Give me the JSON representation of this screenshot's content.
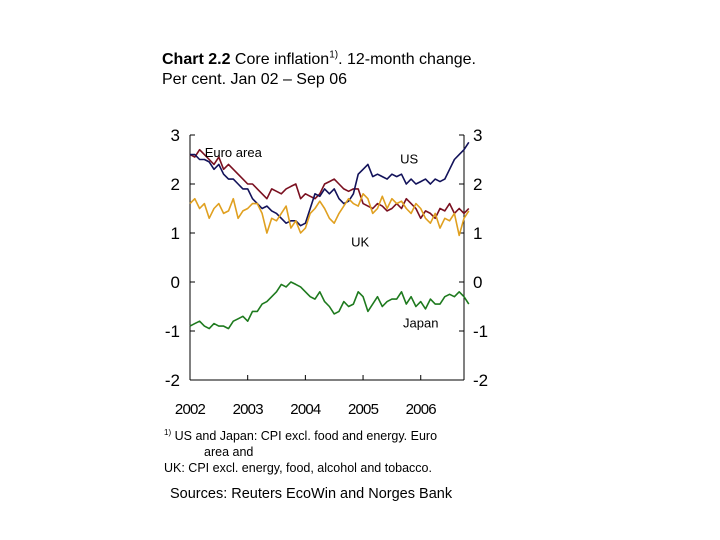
{
  "header": {
    "chart_no": "Chart 2.2",
    "title": "Core inflation",
    "title_sup": "1)",
    "title_rest": ". 12-month change.",
    "subtitle": "Per cent. Jan 02 – Sep 06"
  },
  "footnote": {
    "marker": "1)",
    "line1": "US and Japan: CPI excl. food and energy. Euro",
    "line2": "area and",
    "line3": "UK: CPI excl. energy, food, alcohol and tobacco."
  },
  "sources": "Sources: Reuters EcoWin and Norges Bank",
  "chart_data": {
    "type": "line",
    "title": "Core inflation. 12-month change",
    "ylabel": "Per cent",
    "ylim": [
      -2,
      3
    ],
    "yticks": [
      3,
      2,
      1,
      0,
      -1,
      -2
    ],
    "ytick_labels": [
      "3",
      "2",
      "1",
      "0",
      "-1",
      "-2"
    ],
    "xlim": [
      2002.0,
      2006.75
    ],
    "xticks": [
      2002,
      2003,
      2004,
      2005,
      2006
    ],
    "xtick_labels": [
      "2002",
      "2003",
      "2004",
      "2005",
      "2006"
    ],
    "period": "Jan 02 – Sep 06",
    "grid": false,
    "series": [
      {
        "name": "Euro area",
        "label": "Euro area",
        "color": "#7a1020",
        "values": [
          2.6,
          2.55,
          2.7,
          2.6,
          2.5,
          2.4,
          2.55,
          2.3,
          2.4,
          2.3,
          2.2,
          2.1,
          2.0,
          2.0,
          1.9,
          1.8,
          1.7,
          1.9,
          1.85,
          1.8,
          1.9,
          1.95,
          2.0,
          1.7,
          1.8,
          1.75,
          1.7,
          1.8,
          2.0,
          2.05,
          2.1,
          2.0,
          1.9,
          1.85,
          1.9,
          1.9,
          1.6,
          1.55,
          1.5,
          1.6,
          1.55,
          1.45,
          1.5,
          1.6,
          1.5,
          1.7,
          1.6,
          1.5,
          1.3,
          1.45,
          1.4,
          1.3,
          1.5,
          1.45,
          1.6,
          1.4,
          1.5,
          1.4,
          1.5
        ]
      },
      {
        "name": "US",
        "label": "US",
        "color": "#12125a",
        "values": [
          2.6,
          2.6,
          2.5,
          2.5,
          2.45,
          2.3,
          2.4,
          2.2,
          2.1,
          2.1,
          2.0,
          1.9,
          1.9,
          1.7,
          1.6,
          1.5,
          1.55,
          1.45,
          1.4,
          1.3,
          1.2,
          1.25,
          1.25,
          1.15,
          1.2,
          1.5,
          1.8,
          1.75,
          1.9,
          1.8,
          1.9,
          1.7,
          1.6,
          1.65,
          1.8,
          2.2,
          2.3,
          2.4,
          2.15,
          2.2,
          2.15,
          2.1,
          2.2,
          2.15,
          2.2,
          2.0,
          2.1,
          2.0,
          2.05,
          2.1,
          2.0,
          2.1,
          2.05,
          2.1,
          2.3,
          2.5,
          2.6,
          2.7,
          2.85
        ]
      },
      {
        "name": "UK",
        "label": "UK",
        "color": "#e0a020",
        "values": [
          1.6,
          1.7,
          1.5,
          1.6,
          1.3,
          1.5,
          1.6,
          1.4,
          1.45,
          1.7,
          1.3,
          1.45,
          1.5,
          1.6,
          1.6,
          1.4,
          1.0,
          1.3,
          1.25,
          1.4,
          1.55,
          1.1,
          1.25,
          1.0,
          1.1,
          1.4,
          1.5,
          1.65,
          1.5,
          1.3,
          1.2,
          1.4,
          1.55,
          1.7,
          1.6,
          1.55,
          1.8,
          1.7,
          1.4,
          1.5,
          1.75,
          1.5,
          1.7,
          1.6,
          1.65,
          1.5,
          1.4,
          1.6,
          1.5,
          1.3,
          1.2,
          1.4,
          1.1,
          1.3,
          1.25,
          1.4,
          0.95,
          1.3,
          1.45
        ]
      },
      {
        "name": "Japan",
        "label": "Japan",
        "color": "#1e7a1e",
        "values": [
          -0.9,
          -0.85,
          -0.8,
          -0.9,
          -0.95,
          -0.85,
          -0.9,
          -0.9,
          -0.95,
          -0.8,
          -0.75,
          -0.7,
          -0.8,
          -0.6,
          -0.6,
          -0.45,
          -0.4,
          -0.3,
          -0.2,
          -0.05,
          -0.1,
          0.0,
          -0.05,
          -0.1,
          -0.2,
          -0.3,
          -0.35,
          -0.2,
          -0.4,
          -0.5,
          -0.65,
          -0.6,
          -0.4,
          -0.5,
          -0.45,
          -0.2,
          -0.3,
          -0.6,
          -0.45,
          -0.3,
          -0.5,
          -0.4,
          -0.35,
          -0.35,
          -0.2,
          -0.45,
          -0.3,
          -0.5,
          -0.4,
          -0.55,
          -0.35,
          -0.45,
          -0.45,
          -0.3,
          -0.25,
          -0.3,
          -0.2,
          -0.3,
          -0.45
        ]
      }
    ]
  }
}
